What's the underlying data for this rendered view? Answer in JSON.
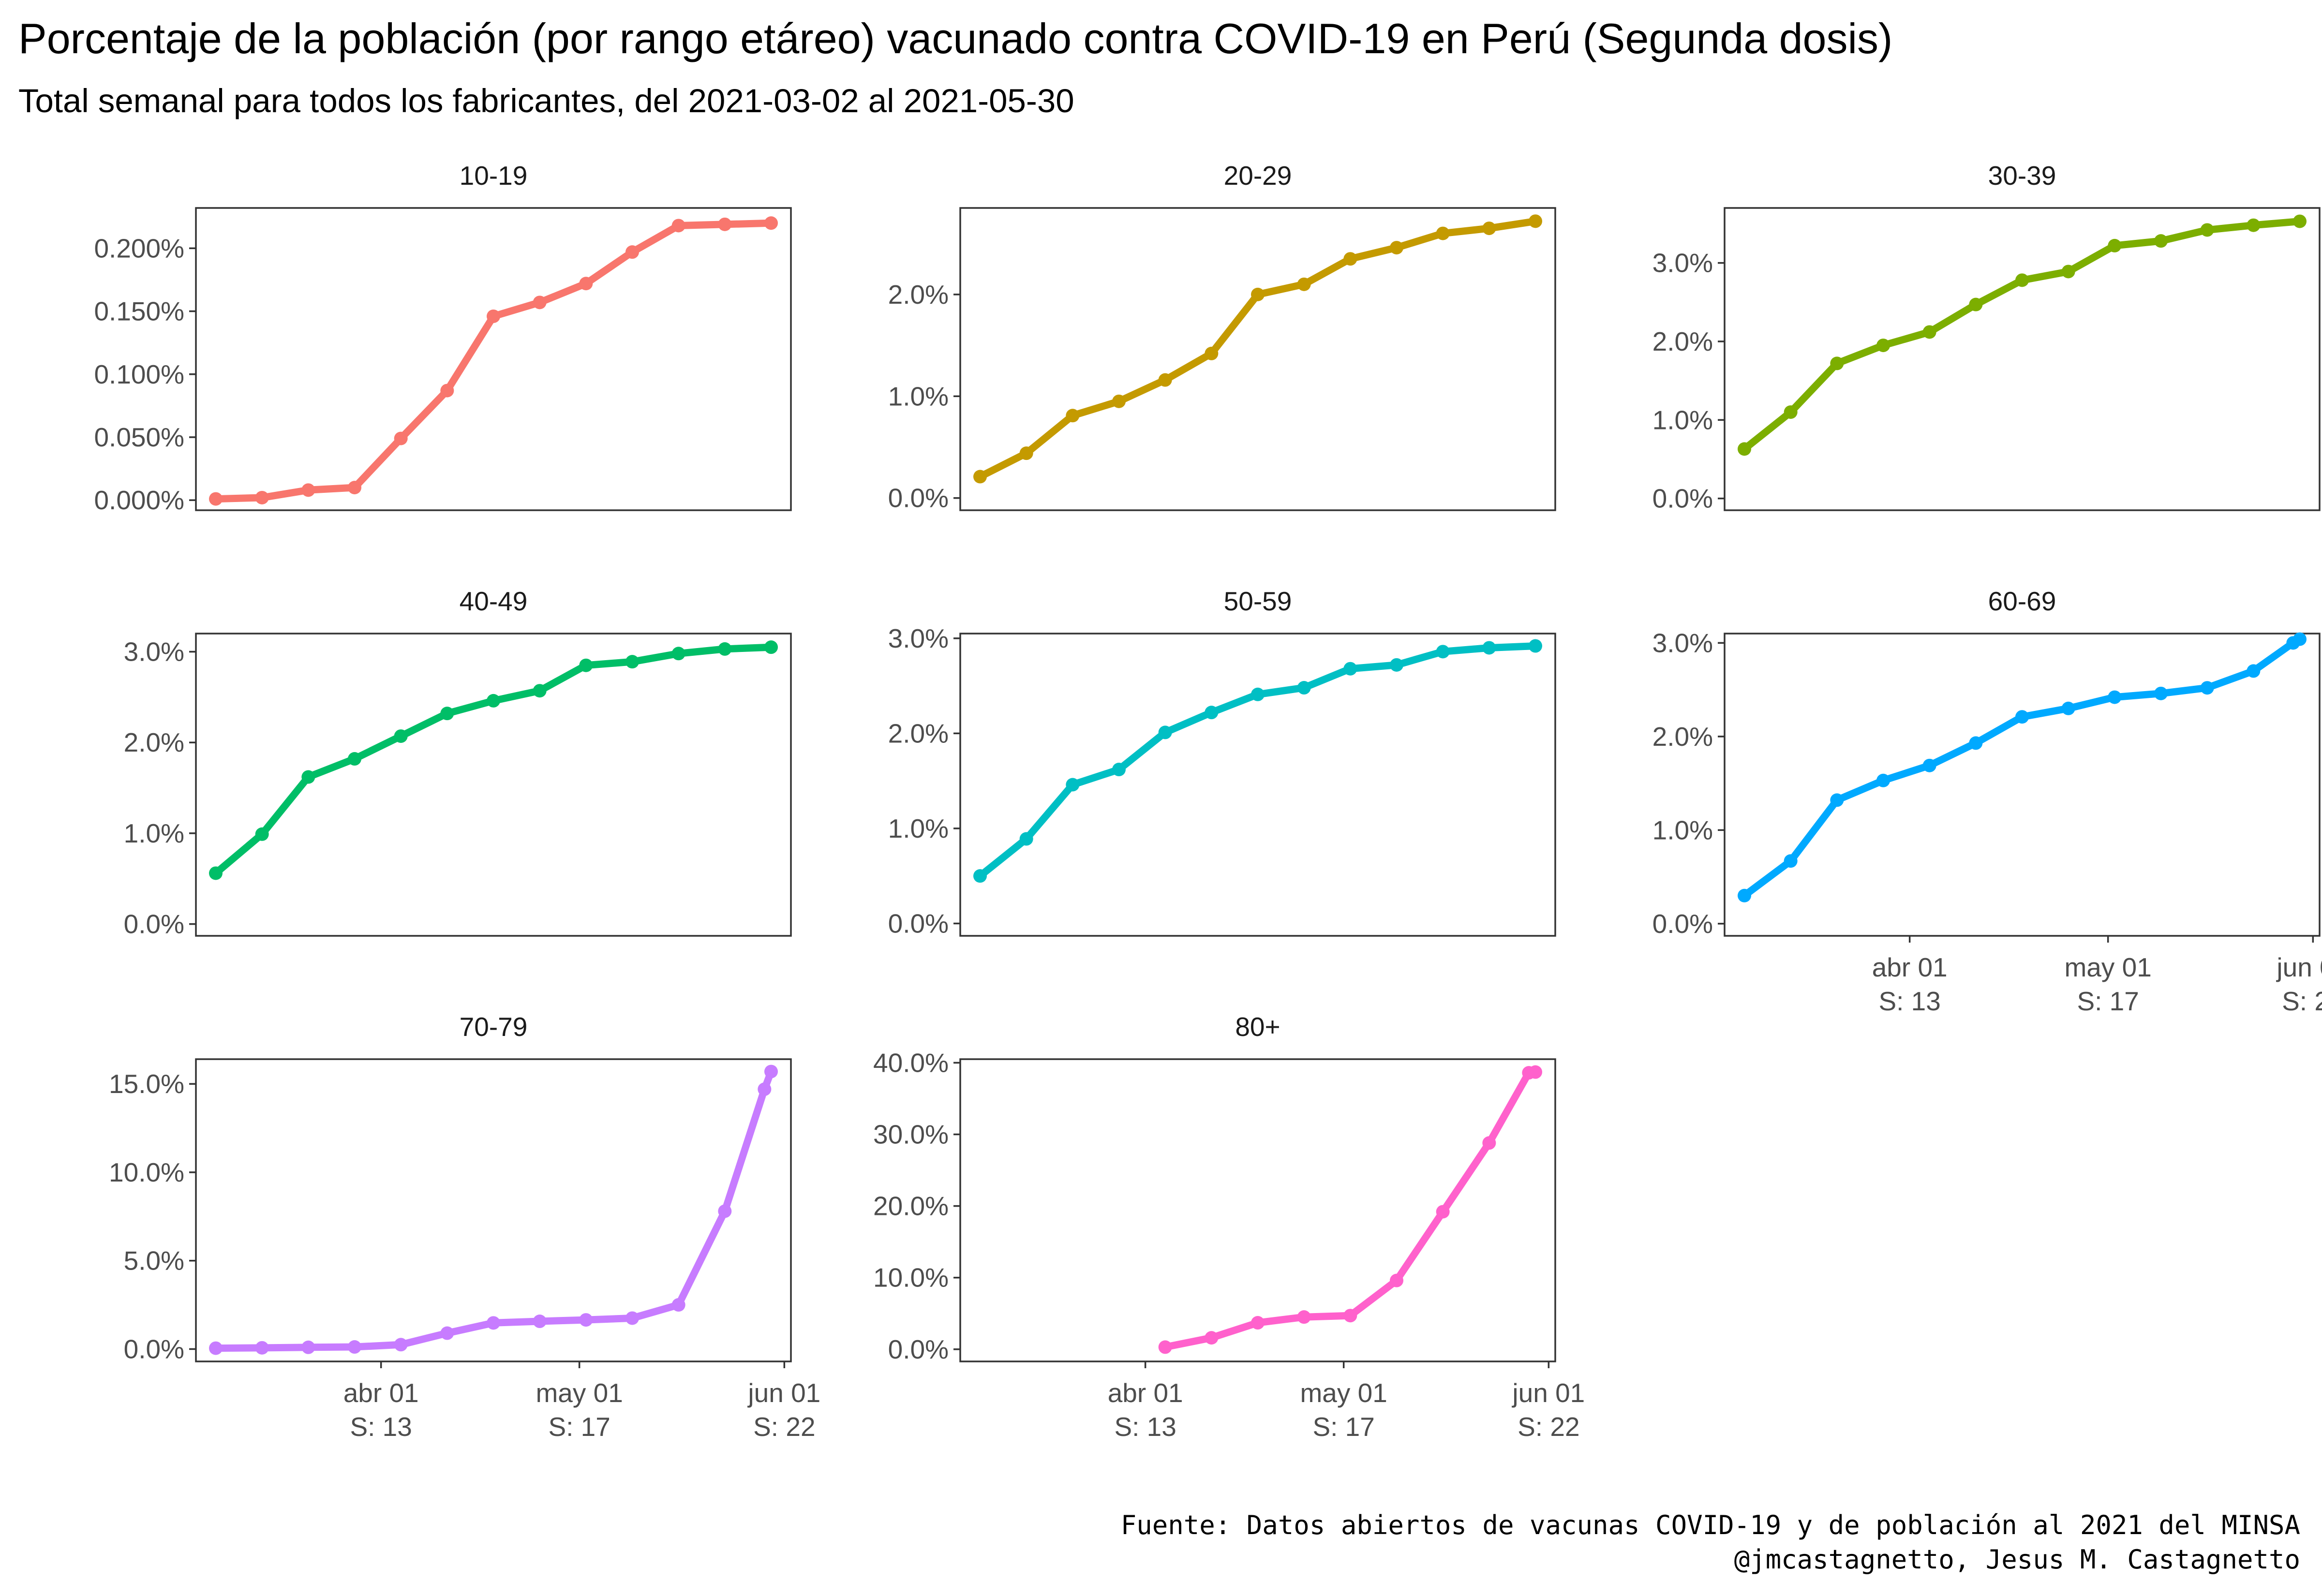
{
  "title": "Porcentaje de la población (por rango etáreo) vacunado contra COVID-19 en Perú (Segunda dosis)",
  "subtitle": "Total semanal para todos los fabricantes, del 2021-03-02 al 2021-05-30",
  "caption": {
    "line1": "Fuente: Datos abiertos de vacunas COVID-19 y de población al 2021 del MINSA",
    "line2": "@jmcastagnetto, Jesus M. Castagnetto"
  },
  "x_ticks": [
    {
      "date": "2021-04-01",
      "line1": "abr 01",
      "line2": "S: 13"
    },
    {
      "date": "2021-05-01",
      "line1": "may 01",
      "line2": "S: 17"
    },
    {
      "date": "2021-06-01",
      "line1": "jun 01",
      "line2": "S: 22"
    }
  ],
  "chart_data": {
    "type": "line",
    "facets": "age groups, free y scale per panel",
    "x_type": "date",
    "xlim": [
      "2021-03-04",
      "2021-06-02"
    ],
    "grid": false,
    "legend": "none",
    "panels": [
      {
        "name": "10-19",
        "color": "#F8766D",
        "ylim": [
          -0.008,
          0.232
        ],
        "yticks": [
          {
            "v": 0.0,
            "label": "0.000%"
          },
          {
            "v": 0.05,
            "label": "0.050%"
          },
          {
            "v": 0.1,
            "label": "0.100%"
          },
          {
            "v": 0.15,
            "label": "0.150%"
          },
          {
            "v": 0.2,
            "label": "0.200%"
          }
        ],
        "points": [
          [
            "2021-03-07",
            0.001
          ],
          [
            "2021-03-14",
            0.002
          ],
          [
            "2021-03-21",
            0.008
          ],
          [
            "2021-03-28",
            0.01
          ],
          [
            "2021-04-04",
            0.049
          ],
          [
            "2021-04-11",
            0.087
          ],
          [
            "2021-04-18",
            0.146
          ],
          [
            "2021-04-25",
            0.157
          ],
          [
            "2021-05-02",
            0.172
          ],
          [
            "2021-05-09",
            0.197
          ],
          [
            "2021-05-16",
            0.218
          ],
          [
            "2021-05-23",
            0.219
          ],
          [
            "2021-05-30",
            0.22
          ]
        ]
      },
      {
        "name": "20-29",
        "color": "#C49A00",
        "ylim": [
          -0.12,
          2.85
        ],
        "yticks": [
          {
            "v": 0.0,
            "label": "0.0%"
          },
          {
            "v": 1.0,
            "label": "1.0%"
          },
          {
            "v": 2.0,
            "label": "2.0%"
          }
        ],
        "points": [
          [
            "2021-03-07",
            0.21
          ],
          [
            "2021-03-14",
            0.44
          ],
          [
            "2021-03-21",
            0.81
          ],
          [
            "2021-03-28",
            0.95
          ],
          [
            "2021-04-04",
            1.16
          ],
          [
            "2021-04-11",
            1.42
          ],
          [
            "2021-04-18",
            2.0
          ],
          [
            "2021-04-25",
            2.1
          ],
          [
            "2021-05-02",
            2.35
          ],
          [
            "2021-05-09",
            2.46
          ],
          [
            "2021-05-16",
            2.6
          ],
          [
            "2021-05-23",
            2.65
          ],
          [
            "2021-05-30",
            2.72
          ]
        ]
      },
      {
        "name": "30-39",
        "color": "#7CAE00",
        "ylim": [
          -0.15,
          3.7
        ],
        "yticks": [
          {
            "v": 0.0,
            "label": "0.0%"
          },
          {
            "v": 1.0,
            "label": "1.0%"
          },
          {
            "v": 2.0,
            "label": "2.0%"
          },
          {
            "v": 3.0,
            "label": "3.0%"
          }
        ],
        "points": [
          [
            "2021-03-07",
            0.63
          ],
          [
            "2021-03-14",
            1.1
          ],
          [
            "2021-03-21",
            1.72
          ],
          [
            "2021-03-28",
            1.95
          ],
          [
            "2021-04-04",
            2.12
          ],
          [
            "2021-04-11",
            2.47
          ],
          [
            "2021-04-18",
            2.78
          ],
          [
            "2021-04-25",
            2.89
          ],
          [
            "2021-05-02",
            3.22
          ],
          [
            "2021-05-09",
            3.28
          ],
          [
            "2021-05-16",
            3.42
          ],
          [
            "2021-05-23",
            3.48
          ],
          [
            "2021-05-30",
            3.53
          ]
        ]
      },
      {
        "name": "40-49",
        "color": "#00BE67",
        "ylim": [
          -0.13,
          3.2
        ],
        "yticks": [
          {
            "v": 0.0,
            "label": "0.0%"
          },
          {
            "v": 1.0,
            "label": "1.0%"
          },
          {
            "v": 2.0,
            "label": "2.0%"
          },
          {
            "v": 3.0,
            "label": "3.0%"
          }
        ],
        "points": [
          [
            "2021-03-07",
            0.56
          ],
          [
            "2021-03-14",
            0.99
          ],
          [
            "2021-03-21",
            1.62
          ],
          [
            "2021-03-28",
            1.82
          ],
          [
            "2021-04-04",
            2.07
          ],
          [
            "2021-04-11",
            2.32
          ],
          [
            "2021-04-18",
            2.46
          ],
          [
            "2021-04-25",
            2.57
          ],
          [
            "2021-05-02",
            2.85
          ],
          [
            "2021-05-09",
            2.89
          ],
          [
            "2021-05-16",
            2.98
          ],
          [
            "2021-05-23",
            3.03
          ],
          [
            "2021-05-30",
            3.05
          ]
        ]
      },
      {
        "name": "50-59",
        "color": "#00BFC4",
        "ylim": [
          -0.13,
          3.05
        ],
        "yticks": [
          {
            "v": 0.0,
            "label": "0.0%"
          },
          {
            "v": 1.0,
            "label": "1.0%"
          },
          {
            "v": 2.0,
            "label": "2.0%"
          },
          {
            "v": 3.0,
            "label": "3.0%"
          }
        ],
        "points": [
          [
            "2021-03-07",
            0.5
          ],
          [
            "2021-03-14",
            0.89
          ],
          [
            "2021-03-21",
            1.46
          ],
          [
            "2021-03-28",
            1.62
          ],
          [
            "2021-04-04",
            2.01
          ],
          [
            "2021-04-11",
            2.22
          ],
          [
            "2021-04-18",
            2.41
          ],
          [
            "2021-04-25",
            2.48
          ],
          [
            "2021-05-02",
            2.68
          ],
          [
            "2021-05-09",
            2.72
          ],
          [
            "2021-05-16",
            2.86
          ],
          [
            "2021-05-23",
            2.9
          ],
          [
            "2021-05-30",
            2.92
          ]
        ]
      },
      {
        "name": "60-69",
        "color": "#00A9FF",
        "ylim": [
          -0.13,
          3.1
        ],
        "yticks": [
          {
            "v": 0.0,
            "label": "0.0%"
          },
          {
            "v": 1.0,
            "label": "1.0%"
          },
          {
            "v": 2.0,
            "label": "2.0%"
          },
          {
            "v": 3.0,
            "label": "3.0%"
          }
        ],
        "points": [
          [
            "2021-03-07",
            0.3
          ],
          [
            "2021-03-14",
            0.67
          ],
          [
            "2021-03-21",
            1.32
          ],
          [
            "2021-03-28",
            1.53
          ],
          [
            "2021-04-04",
            1.69
          ],
          [
            "2021-04-11",
            1.93
          ],
          [
            "2021-04-18",
            2.21
          ],
          [
            "2021-04-25",
            2.3
          ],
          [
            "2021-05-02",
            2.42
          ],
          [
            "2021-05-09",
            2.46
          ],
          [
            "2021-05-16",
            2.52
          ],
          [
            "2021-05-23",
            2.7
          ],
          [
            "2021-05-29",
            3.0
          ],
          [
            "2021-05-30",
            3.04
          ]
        ]
      },
      {
        "name": "70-79",
        "color": "#C77CFF",
        "ylim": [
          -0.7,
          16.4
        ],
        "yticks": [
          {
            "v": 0.0,
            "label": "0.0%"
          },
          {
            "v": 5.0,
            "label": "5.0%"
          },
          {
            "v": 10.0,
            "label": "10.0%"
          },
          {
            "v": 15.0,
            "label": "15.0%"
          }
        ],
        "points": [
          [
            "2021-03-07",
            0.05
          ],
          [
            "2021-03-14",
            0.07
          ],
          [
            "2021-03-21",
            0.1
          ],
          [
            "2021-03-28",
            0.12
          ],
          [
            "2021-04-04",
            0.25
          ],
          [
            "2021-04-11",
            0.9
          ],
          [
            "2021-04-18",
            1.48
          ],
          [
            "2021-04-25",
            1.57
          ],
          [
            "2021-05-02",
            1.65
          ],
          [
            "2021-05-09",
            1.75
          ],
          [
            "2021-05-16",
            2.5
          ],
          [
            "2021-05-23",
            7.8
          ],
          [
            "2021-05-29",
            14.7
          ],
          [
            "2021-05-30",
            15.7
          ]
        ]
      },
      {
        "name": "80+",
        "color": "#FF61CC",
        "ylim": [
          -1.7,
          40.5
        ],
        "yticks": [
          {
            "v": 0.0,
            "label": "0.0%"
          },
          {
            "v": 10.0,
            "label": "10.0%"
          },
          {
            "v": 20.0,
            "label": "20.0%"
          },
          {
            "v": 30.0,
            "label": "30.0%"
          },
          {
            "v": 40.0,
            "label": "40.0%"
          }
        ],
        "points": [
          [
            "2021-04-04",
            0.3
          ],
          [
            "2021-04-11",
            1.6
          ],
          [
            "2021-04-18",
            3.7
          ],
          [
            "2021-04-25",
            4.5
          ],
          [
            "2021-05-02",
            4.7
          ],
          [
            "2021-05-09",
            9.6
          ],
          [
            "2021-05-16",
            19.2
          ],
          [
            "2021-05-23",
            28.8
          ],
          [
            "2021-05-29",
            38.6
          ],
          [
            "2021-05-30",
            38.7
          ]
        ]
      }
    ]
  }
}
